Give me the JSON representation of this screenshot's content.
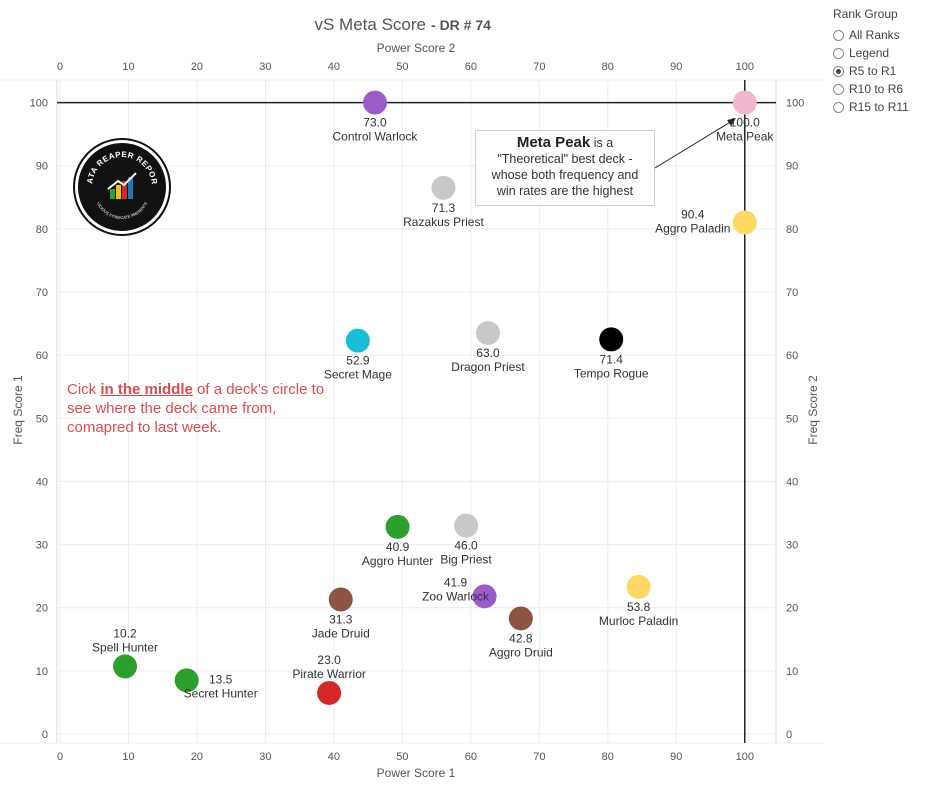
{
  "title": "vS Meta Score",
  "subtitle": "DR # 74",
  "rank_group": {
    "title": "Rank Group",
    "options": [
      "All Ranks",
      "Legend",
      "R5 to R1",
      "R10 to R6",
      "R15 to R11"
    ],
    "selected": "R5 to R1"
  },
  "annotation": {
    "bold": "Meta Peak",
    "text1": "is a",
    "text2": "\"Theoretical\" best deck -",
    "text3": "whose both frequency and",
    "text4": "win rates are the highest"
  },
  "hint": {
    "pre": "Cick ",
    "emph": "in the middle",
    "post": " of a deck's circle to see where the deck came from, comapred to last week."
  },
  "logo": {
    "top_text": "DATA REAPER REPORT",
    "bottom_text": "VICIOUS SYNDICATE PRESENTS"
  },
  "chart_data": {
    "type": "scatter",
    "title": "vS Meta Score - DR # 74",
    "xlabel": "Power Score 1",
    "x2label": "Power Score 2",
    "ylabel": "Freq Score 1",
    "y2label": "Freq Score 2",
    "xlim": [
      0,
      105
    ],
    "ylim": [
      0,
      105
    ],
    "xticks": [
      0,
      10,
      20,
      30,
      40,
      50,
      60,
      70,
      80,
      90,
      100
    ],
    "yticks": [
      0,
      10,
      20,
      30,
      40,
      50,
      60,
      70,
      80,
      90,
      100
    ],
    "grid": true,
    "reference_lines": {
      "x": 100,
      "y": 100
    },
    "points": [
      {
        "name": "Control Warlock",
        "score": "73.0",
        "x": 46.0,
        "y": 100.0,
        "color": "#9b5bc9"
      },
      {
        "name": "Meta Peak",
        "score": "100.0",
        "x": 100.0,
        "y": 100.0,
        "color": "#f2b6cf"
      },
      {
        "name": "Razakus Priest",
        "score": "71.3",
        "x": 56.0,
        "y": 86.5,
        "color": "#c8c8c8"
      },
      {
        "name": "Aggro Paladin",
        "score": "90.4",
        "x": 100.0,
        "y": 81.0,
        "color": "#fdd964"
      },
      {
        "name": "Secret Mage",
        "score": "52.9",
        "x": 43.5,
        "y": 62.3,
        "color": "#17bfd6"
      },
      {
        "name": "Dragon Priest",
        "score": "63.0",
        "x": 62.5,
        "y": 63.5,
        "color": "#c8c8c8"
      },
      {
        "name": "Tempo Rogue",
        "score": "71.4",
        "x": 80.5,
        "y": 62.5,
        "color": "#000000"
      },
      {
        "name": "Aggro Hunter",
        "score": "40.9",
        "x": 49.3,
        "y": 32.8,
        "color": "#2ca02c"
      },
      {
        "name": "Big Priest",
        "score": "46.0",
        "x": 59.3,
        "y": 33.0,
        "color": "#c8c8c8"
      },
      {
        "name": "Jade Druid",
        "score": "31.3",
        "x": 41.0,
        "y": 21.3,
        "color": "#8c5442"
      },
      {
        "name": "Zoo Warlock",
        "score": "41.9",
        "x": 62.0,
        "y": 21.8,
        "color": "#9b5bc9"
      },
      {
        "name": "Aggro Druid",
        "score": "42.8",
        "x": 67.3,
        "y": 18.3,
        "color": "#8c5442"
      },
      {
        "name": "Murloc Paladin",
        "score": "53.8",
        "x": 84.5,
        "y": 23.3,
        "color": "#fdd964"
      },
      {
        "name": "Spell Hunter",
        "score": "10.2",
        "x": 9.5,
        "y": 10.7,
        "color": "#2ca02c"
      },
      {
        "name": "Secret Hunter",
        "score": "13.5",
        "x": 18.5,
        "y": 8.5,
        "color": "#2ca02c"
      },
      {
        "name": "Pirate Warrior",
        "score": "23.0",
        "x": 39.3,
        "y": 6.5,
        "color": "#d62728"
      }
    ]
  }
}
